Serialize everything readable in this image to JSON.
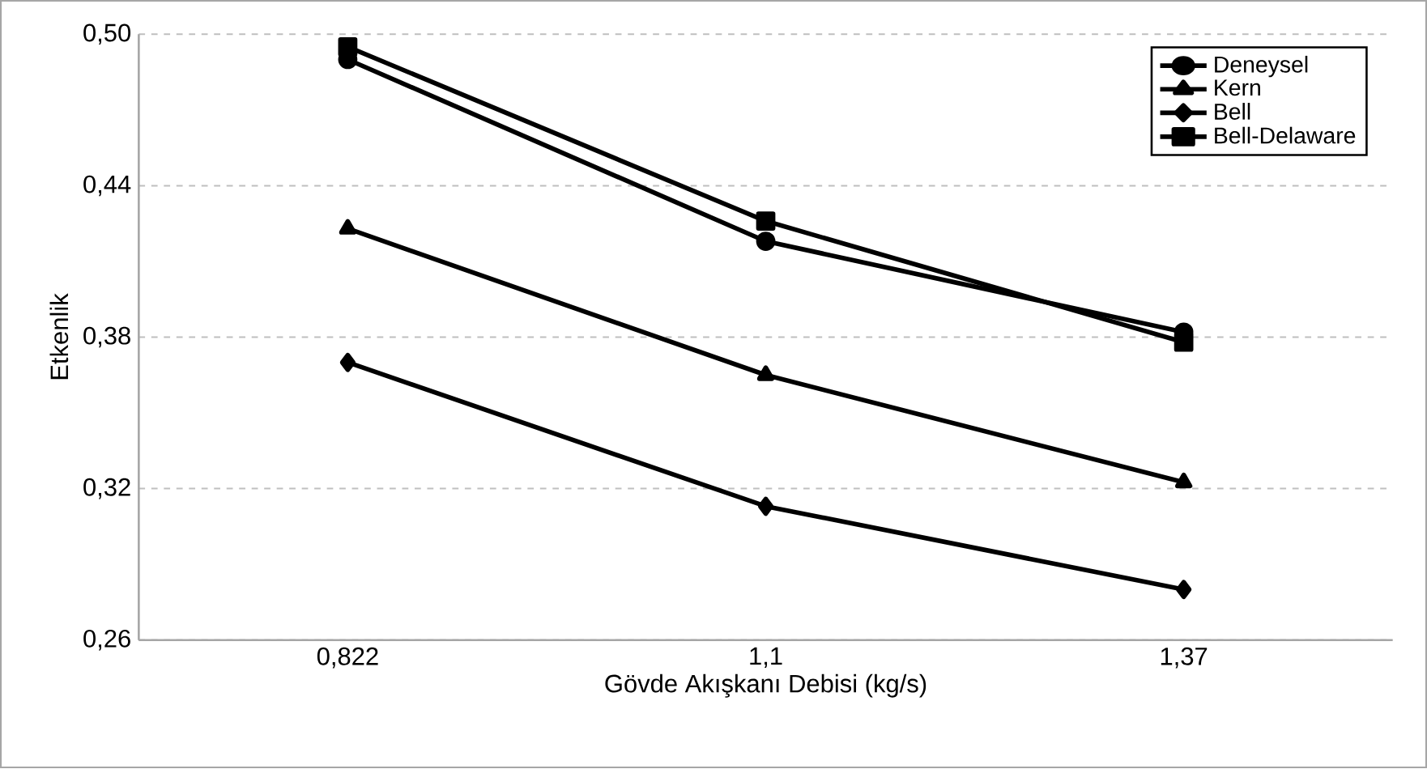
{
  "chart_data": {
    "type": "line",
    "xlabel": "Gövde Akışkanı Debisi (kg/s)",
    "ylabel": "Etkenlik",
    "categories": [
      "0,822",
      "1,1",
      "1,37"
    ],
    "ylim": [
      0.26,
      0.5
    ],
    "yticks": [
      {
        "value": 0.26,
        "label": "0,26"
      },
      {
        "value": 0.32,
        "label": "0,32"
      },
      {
        "value": 0.38,
        "label": "0,38"
      },
      {
        "value": 0.44,
        "label": "0,44"
      },
      {
        "value": 0.5,
        "label": "0,50"
      }
    ],
    "grid": "y",
    "legend": "top right",
    "line_style": "solid",
    "series": [
      {
        "name": "Deneysel",
        "color": "#000000",
        "marker": "circle",
        "values": [
          0.49,
          0.418,
          0.382
        ]
      },
      {
        "name": "Kern",
        "color": "#000000",
        "marker": "triangle",
        "values": [
          0.423,
          0.365,
          0.3225
        ]
      },
      {
        "name": "Bell",
        "color": "#000000",
        "marker": "diamond",
        "values": [
          0.37,
          0.313,
          0.28
        ]
      },
      {
        "name": "Bell-Delaware",
        "color": "#000000",
        "marker": "square",
        "values": [
          0.495,
          0.426,
          0.378
        ]
      }
    ]
  }
}
